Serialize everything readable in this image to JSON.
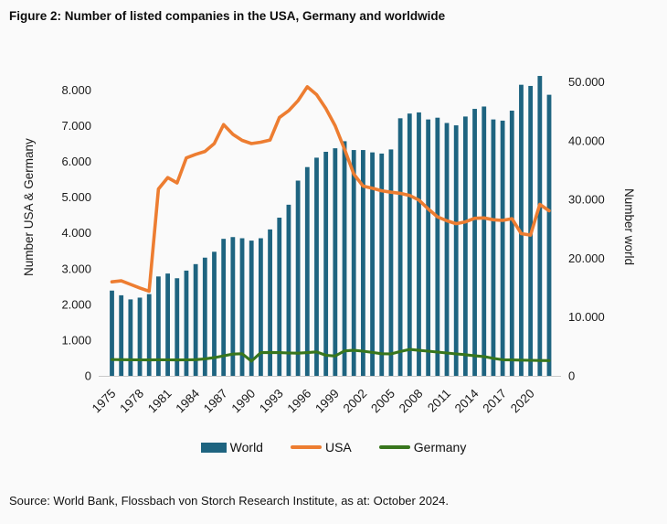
{
  "title": "Figure 2: Number of listed companies in the USA, Germany and worldwide",
  "source": "Source: World Bank, Flossbach von Storch Research Institute, as at: October 2024.",
  "chart_data": {
    "type": "bar+line",
    "ylabel_left": "Number USA & Germany",
    "ylabel_right": "Number world",
    "grid": false,
    "legend_position": "bottom-center",
    "x": [
      1975,
      1976,
      1977,
      1978,
      1979,
      1980,
      1981,
      1982,
      1983,
      1984,
      1985,
      1986,
      1987,
      1988,
      1989,
      1990,
      1991,
      1992,
      1993,
      1994,
      1995,
      1996,
      1997,
      1998,
      1999,
      2000,
      2001,
      2002,
      2003,
      2004,
      2005,
      2006,
      2007,
      2008,
      2009,
      2010,
      2011,
      2012,
      2013,
      2014,
      2015,
      2016,
      2017,
      2018,
      2019,
      2020,
      2021,
      2022
    ],
    "x_ticks": [
      {
        "value": 1975,
        "label": "1975"
      },
      {
        "value": 1978,
        "label": "1978"
      },
      {
        "value": 1981,
        "label": "1981"
      },
      {
        "value": 1984,
        "label": "1984"
      },
      {
        "value": 1987,
        "label": "1987"
      },
      {
        "value": 1990,
        "label": "1990"
      },
      {
        "value": 1993,
        "label": "1993"
      },
      {
        "value": 1996,
        "label": "1996"
      },
      {
        "value": 1999,
        "label": "1999"
      },
      {
        "value": 2002,
        "label": "2002"
      },
      {
        "value": 2005,
        "label": "2005"
      },
      {
        "value": 2008,
        "label": "2008"
      },
      {
        "value": 2011,
        "label": "2011"
      },
      {
        "value": 2014,
        "label": "2014"
      },
      {
        "value": 2017,
        "label": "2017"
      },
      {
        "value": 2020,
        "label": "2020"
      }
    ],
    "axis_left": {
      "range": [
        0,
        8600
      ],
      "ticks": [
        {
          "value": 0,
          "label": "0"
        },
        {
          "value": 1000,
          "label": "1.000"
        },
        {
          "value": 2000,
          "label": "2.000"
        },
        {
          "value": 3000,
          "label": "3.000"
        },
        {
          "value": 4000,
          "label": "4.000"
        },
        {
          "value": 5000,
          "label": "5.000"
        },
        {
          "value": 6000,
          "label": "6.000"
        },
        {
          "value": 7000,
          "label": "7.000"
        },
        {
          "value": 8000,
          "label": "8.000"
        }
      ]
    },
    "axis_right": {
      "range": [
        0,
        52250
      ],
      "ticks": [
        {
          "value": 0,
          "label": "0"
        },
        {
          "value": 10000,
          "label": "10.000"
        },
        {
          "value": 20000,
          "label": "20.000"
        },
        {
          "value": 30000,
          "label": "30.000"
        },
        {
          "value": 40000,
          "label": "40.000"
        },
        {
          "value": 50000,
          "label": "50.000"
        }
      ]
    },
    "series": [
      {
        "name": "World",
        "type": "bar",
        "axis": "right",
        "color": "#1E6480",
        "values": [
          14500,
          13700,
          13000,
          13300,
          13900,
          16900,
          17400,
          16600,
          17900,
          19000,
          20100,
          21100,
          23300,
          23600,
          23400,
          23000,
          23400,
          24900,
          26900,
          29100,
          33200,
          35500,
          37100,
          38100,
          38700,
          39900,
          38400,
          38400,
          38000,
          37800,
          38500,
          43800,
          44600,
          44800,
          43600,
          43900,
          43000,
          42600,
          44100,
          45400,
          45800,
          43600,
          43400,
          45100,
          49500,
          49300,
          51000,
          47800
        ]
      },
      {
        "name": "USA",
        "type": "line",
        "axis": "left",
        "color": "#ED7D31",
        "values": [
          2630,
          2660,
          2560,
          2460,
          2370,
          5230,
          5550,
          5400,
          6100,
          6200,
          6280,
          6500,
          7030,
          6760,
          6590,
          6500,
          6540,
          6600,
          7230,
          7420,
          7700,
          8090,
          7870,
          7480,
          7000,
          6350,
          5650,
          5310,
          5250,
          5180,
          5140,
          5110,
          5050,
          4920,
          4670,
          4450,
          4340,
          4260,
          4310,
          4410,
          4420,
          4370,
          4350,
          4400,
          3980,
          3940,
          4800,
          4620
        ]
      },
      {
        "name": "Germany",
        "type": "line",
        "axis": "left",
        "color": "#38761D",
        "values": [
          455,
          452,
          450,
          448,
          446,
          450,
          448,
          445,
          447,
          452,
          475,
          510,
          560,
          609,
          620,
          413,
          650,
          655,
          650,
          640,
          635,
          650,
          670,
          575,
          555,
          700,
          715,
          690,
          655,
          620,
          615,
          680,
          740,
          715,
          690,
          665,
          640,
          615,
          590,
          560,
          540,
          490,
          450,
          445,
          440,
          435,
          430,
          428
        ]
      }
    ]
  },
  "legend": {
    "world_label": "World",
    "usa_label": "USA",
    "germany_label": "Germany"
  }
}
